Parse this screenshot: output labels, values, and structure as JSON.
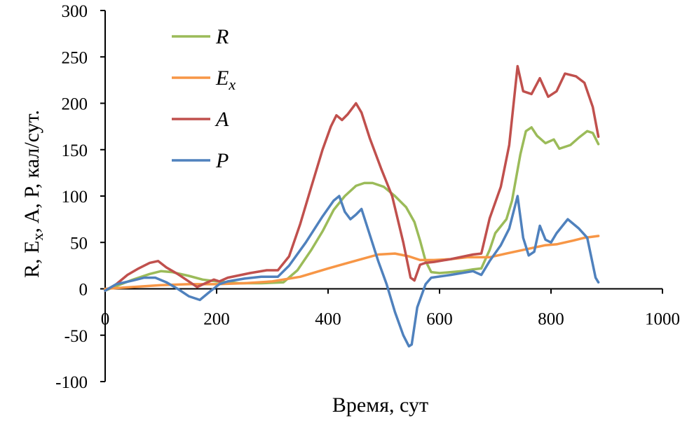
{
  "chart_data": {
    "type": "line",
    "xlabel": "Время, сут",
    "ylabel": "R, Ex, A, P, кал/сут.",
    "xlim": [
      0,
      1000
    ],
    "ylim": [
      -100,
      300
    ],
    "xticks": [
      "0",
      "200",
      "400",
      "600",
      "800",
      "1000"
    ],
    "yticks": [
      "300",
      "250",
      "200",
      "150",
      "100",
      "50",
      "0",
      "-50",
      "-100"
    ],
    "grid": false,
    "legend_position": "top-left",
    "series": [
      {
        "name": "R",
        "color": "#9BBB59",
        "points": [
          [
            0,
            -2
          ],
          [
            20,
            3
          ],
          [
            50,
            10
          ],
          [
            80,
            16
          ],
          [
            100,
            19
          ],
          [
            120,
            18
          ],
          [
            150,
            14
          ],
          [
            175,
            10
          ],
          [
            200,
            8
          ],
          [
            240,
            6
          ],
          [
            280,
            6
          ],
          [
            320,
            7
          ],
          [
            345,
            20
          ],
          [
            370,
            42
          ],
          [
            390,
            62
          ],
          [
            410,
            85
          ],
          [
            430,
            100
          ],
          [
            450,
            111
          ],
          [
            465,
            114
          ],
          [
            480,
            114
          ],
          [
            500,
            110
          ],
          [
            520,
            100
          ],
          [
            540,
            88
          ],
          [
            555,
            72
          ],
          [
            565,
            52
          ],
          [
            575,
            30
          ],
          [
            585,
            18
          ],
          [
            600,
            17
          ],
          [
            640,
            19
          ],
          [
            660,
            21
          ],
          [
            675,
            22
          ],
          [
            690,
            42
          ],
          [
            700,
            60
          ],
          [
            720,
            75
          ],
          [
            730,
            95
          ],
          [
            745,
            145
          ],
          [
            755,
            170
          ],
          [
            765,
            174
          ],
          [
            775,
            165
          ],
          [
            790,
            157
          ],
          [
            805,
            161
          ],
          [
            815,
            151
          ],
          [
            835,
            155
          ],
          [
            850,
            163
          ],
          [
            865,
            170
          ],
          [
            875,
            168
          ],
          [
            885,
            156
          ]
        ]
      },
      {
        "name": "Ex",
        "color": "#F79646",
        "points": [
          [
            0,
            0
          ],
          [
            50,
            2
          ],
          [
            100,
            4
          ],
          [
            150,
            5
          ],
          [
            200,
            5
          ],
          [
            250,
            6
          ],
          [
            300,
            8
          ],
          [
            350,
            13
          ],
          [
            400,
            22
          ],
          [
            430,
            27
          ],
          [
            460,
            32
          ],
          [
            490,
            37
          ],
          [
            520,
            38
          ],
          [
            545,
            35
          ],
          [
            565,
            31
          ],
          [
            590,
            31
          ],
          [
            620,
            32
          ],
          [
            650,
            34
          ],
          [
            690,
            34
          ],
          [
            720,
            38
          ],
          [
            750,
            42
          ],
          [
            790,
            47
          ],
          [
            810,
            48
          ],
          [
            840,
            52
          ],
          [
            860,
            55
          ],
          [
            885,
            57
          ]
        ]
      },
      {
        "name": "A",
        "color": "#C0504D",
        "points": [
          [
            0,
            -2
          ],
          [
            20,
            5
          ],
          [
            40,
            15
          ],
          [
            60,
            22
          ],
          [
            80,
            28
          ],
          [
            95,
            30
          ],
          [
            110,
            23
          ],
          [
            130,
            16
          ],
          [
            150,
            8
          ],
          [
            165,
            2
          ],
          [
            180,
            6
          ],
          [
            195,
            10
          ],
          [
            205,
            8
          ],
          [
            220,
            12
          ],
          [
            260,
            17
          ],
          [
            290,
            20
          ],
          [
            310,
            20
          ],
          [
            330,
            35
          ],
          [
            350,
            70
          ],
          [
            370,
            110
          ],
          [
            390,
            150
          ],
          [
            405,
            175
          ],
          [
            415,
            187
          ],
          [
            425,
            182
          ],
          [
            435,
            188
          ],
          [
            450,
            200
          ],
          [
            460,
            190
          ],
          [
            475,
            162
          ],
          [
            495,
            130
          ],
          [
            515,
            100
          ],
          [
            535,
            50
          ],
          [
            548,
            12
          ],
          [
            555,
            9
          ],
          [
            565,
            26
          ],
          [
            575,
            28
          ],
          [
            590,
            29
          ],
          [
            620,
            32
          ],
          [
            660,
            37
          ],
          [
            675,
            38
          ],
          [
            690,
            76
          ],
          [
            710,
            110
          ],
          [
            725,
            155
          ],
          [
            740,
            240
          ],
          [
            750,
            213
          ],
          [
            765,
            210
          ],
          [
            780,
            227
          ],
          [
            795,
            207
          ],
          [
            810,
            213
          ],
          [
            825,
            232
          ],
          [
            845,
            229
          ],
          [
            860,
            222
          ],
          [
            875,
            196
          ],
          [
            885,
            164
          ]
        ]
      },
      {
        "name": "P",
        "color": "#4F81BD",
        "points": [
          [
            0,
            -2
          ],
          [
            20,
            5
          ],
          [
            50,
            9
          ],
          [
            70,
            12
          ],
          [
            90,
            12
          ],
          [
            110,
            7
          ],
          [
            130,
            0
          ],
          [
            150,
            -8
          ],
          [
            170,
            -12
          ],
          [
            190,
            -2
          ],
          [
            205,
            5
          ],
          [
            220,
            8
          ],
          [
            250,
            11
          ],
          [
            280,
            13
          ],
          [
            310,
            13
          ],
          [
            330,
            25
          ],
          [
            360,
            50
          ],
          [
            390,
            78
          ],
          [
            410,
            95
          ],
          [
            420,
            100
          ],
          [
            430,
            83
          ],
          [
            440,
            75
          ],
          [
            450,
            80
          ],
          [
            460,
            86
          ],
          [
            475,
            58
          ],
          [
            490,
            30
          ],
          [
            505,
            5
          ],
          [
            520,
            -25
          ],
          [
            535,
            -50
          ],
          [
            545,
            -62
          ],
          [
            550,
            -60
          ],
          [
            560,
            -20
          ],
          [
            575,
            5
          ],
          [
            585,
            12
          ],
          [
            620,
            15
          ],
          [
            660,
            19
          ],
          [
            675,
            15
          ],
          [
            690,
            30
          ],
          [
            710,
            47
          ],
          [
            725,
            65
          ],
          [
            740,
            100
          ],
          [
            750,
            55
          ],
          [
            760,
            36
          ],
          [
            770,
            40
          ],
          [
            780,
            68
          ],
          [
            790,
            53
          ],
          [
            800,
            50
          ],
          [
            810,
            60
          ],
          [
            830,
            75
          ],
          [
            850,
            65
          ],
          [
            865,
            55
          ],
          [
            880,
            12
          ],
          [
            885,
            7
          ]
        ]
      }
    ]
  }
}
